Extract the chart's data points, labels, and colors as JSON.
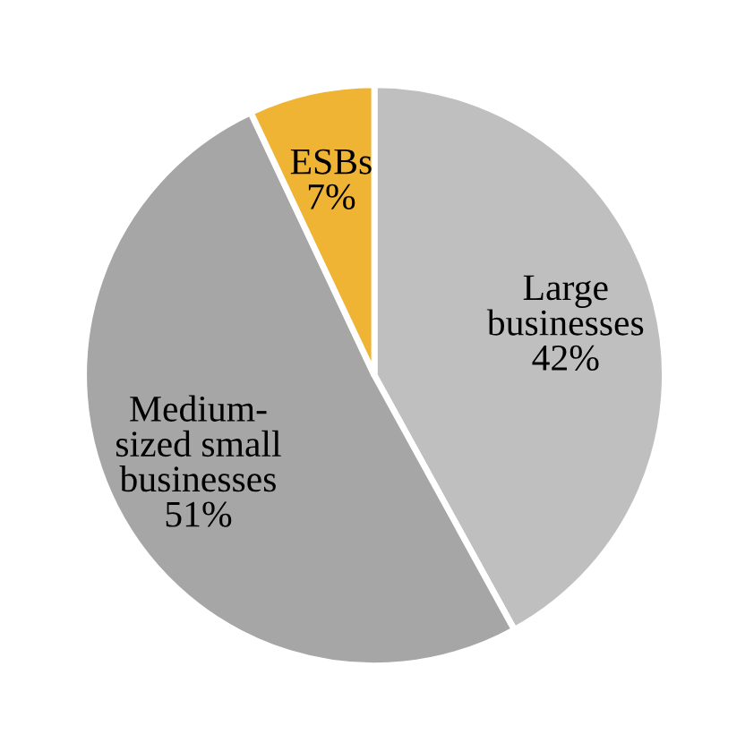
{
  "chart_data": {
    "type": "pie",
    "categories": [
      "Large\nbusinesses",
      "Medium-\nsized small\nbusinesses",
      "ESBs"
    ],
    "values": [
      42,
      51,
      7
    ],
    "value_labels": [
      "42%",
      "51%",
      "7%"
    ],
    "colors": [
      "#bfbfbf",
      "#a6a6a6",
      "#f0b434"
    ],
    "legend": false
  }
}
